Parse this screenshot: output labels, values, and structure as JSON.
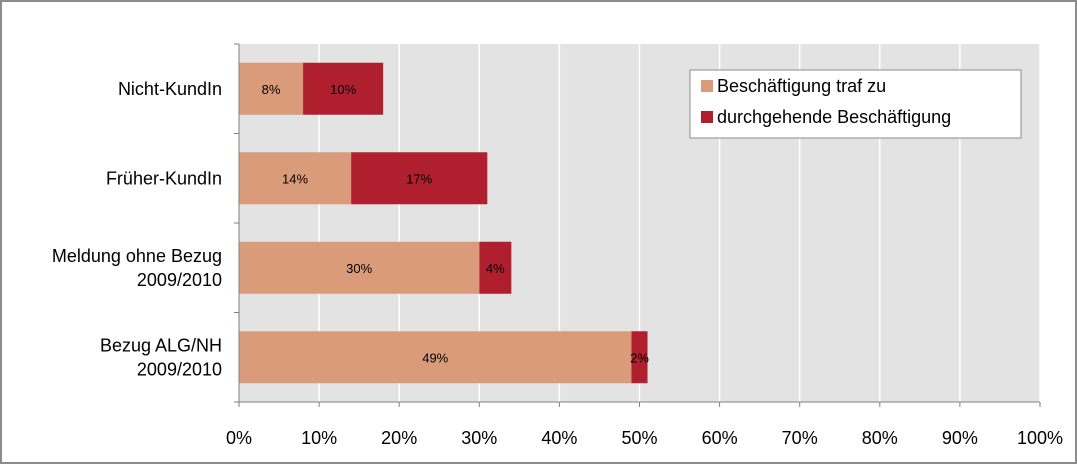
{
  "chart_data": {
    "type": "bar",
    "orientation": "horizontal",
    "stacked": true,
    "categories": [
      "Nicht-KundIn",
      "Früher-KundIn",
      "Meldung ohne Bezug 2009/2010",
      "Bezug ALG/NH 2009/2010"
    ],
    "category_lines": [
      [
        "Nicht-KundIn"
      ],
      [
        "Früher-KundIn"
      ],
      [
        "Meldung ohne Bezug",
        "2009/2010"
      ],
      [
        "Bezug ALG/NH",
        "2009/2010"
      ]
    ],
    "series": [
      {
        "name": "Beschäftigung traf zu",
        "values": [
          8,
          14,
          30,
          49
        ],
        "labels": [
          "8%",
          "14%",
          "30%",
          "49%"
        ],
        "color": "#D99B7A"
      },
      {
        "name": "durchgehende Beschäftigung",
        "values": [
          10,
          17,
          4,
          2
        ],
        "labels": [
          "10%",
          "17%",
          "4%",
          "2%"
        ],
        "color": "#B01F2E"
      }
    ],
    "xlim": [
      0,
      100
    ],
    "xticks": [
      "0%",
      "10%",
      "20%",
      "30%",
      "40%",
      "50%",
      "60%",
      "70%",
      "80%",
      "90%",
      "100%"
    ],
    "grid": true,
    "legend_position": "top-right",
    "plot_background": "#E3E3E3"
  }
}
